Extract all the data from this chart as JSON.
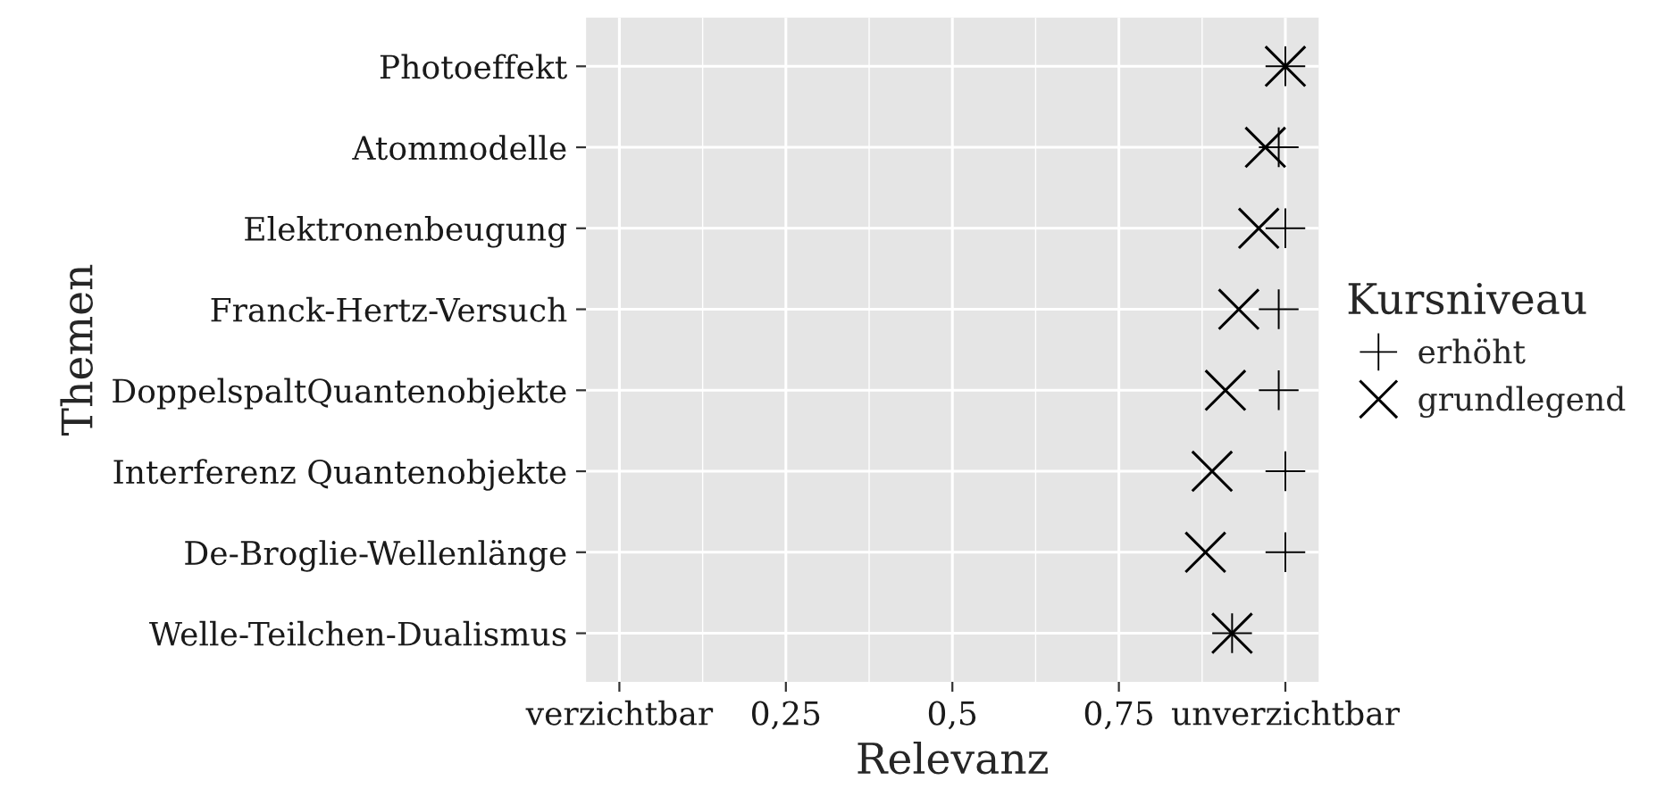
{
  "chart_data": {
    "type": "scatter",
    "orientation": "horizontal",
    "xlabel": "Relevanz",
    "ylabel": "Themen",
    "legend_title": "Kursniveau",
    "legend": "right",
    "grid": true,
    "categories": [
      "Photoeffekt",
      "Atommodelle",
      "Elektronenbeugung",
      "Franck-Hertz-Versuch",
      "DoppelspaltQuantenobjekte",
      "Interferenz Quantenobjekte",
      "De-Broglie-Wellenlänge",
      "Welle-Teilchen-Dualismus"
    ],
    "xlim": [
      -0.05,
      1.05
    ],
    "xticks": [
      {
        "value": 0,
        "label": "verzichtbar"
      },
      {
        "value": 0.25,
        "label": "0,25"
      },
      {
        "value": 0.5,
        "label": "0,5"
      },
      {
        "value": 0.75,
        "label": "0,75"
      },
      {
        "value": 1,
        "label": "unverzichtbar"
      }
    ],
    "series": [
      {
        "name": "erhöht",
        "color": "#000000",
        "marker": "cross",
        "values": [
          1.0,
          0.99,
          1.0,
          0.99,
          0.99,
          1.0,
          1.0,
          0.92
        ]
      },
      {
        "name": "grundlegend",
        "color": "#000000",
        "values": [
          1.0,
          0.97,
          0.96,
          0.93,
          0.91,
          0.89,
          0.88,
          0.92
        ]
      }
    ]
  }
}
